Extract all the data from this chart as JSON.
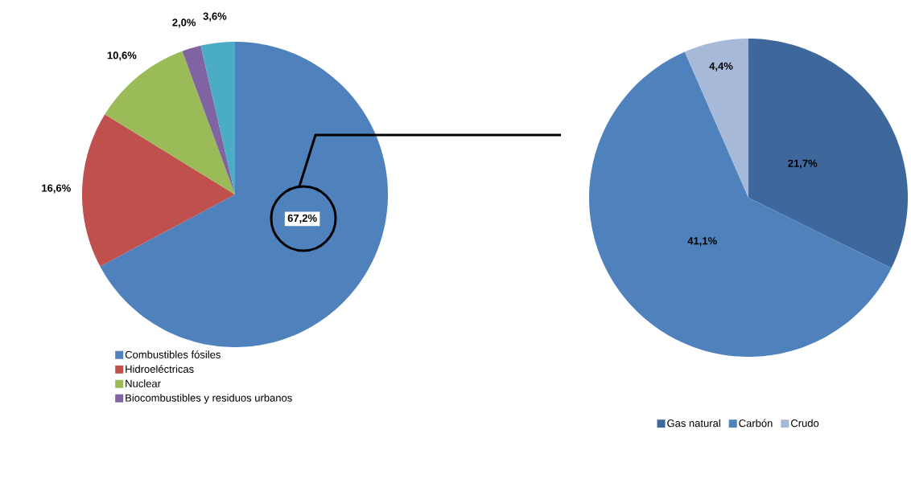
{
  "chart_data": [
    {
      "type": "pie",
      "categories": [
        "Combustibles fósiles",
        "Hidroeléctricas",
        "Nuclear",
        "Biocombustibles y residuos urbanos",
        null
      ],
      "values": [
        67.2,
        16.6,
        10.6,
        2.0,
        3.6
      ],
      "colors": [
        "#4f81bd",
        "#c0504d",
        "#9bbb59",
        "#8064a2",
        "#4bacc6"
      ],
      "value_labels": [
        "67,2%",
        "16,6%",
        "10,6%",
        "2,0%",
        "3,6%"
      ],
      "legend": "bottom"
    },
    {
      "type": "pie",
      "categories": [
        "Gas natural",
        "Carbón",
        "Crudo"
      ],
      "values": [
        21.7,
        41.1,
        4.4
      ],
      "colors": [
        "#3e679c",
        "#4f81bd",
        "#a7b9d9"
      ],
      "value_labels": [
        "21,7%",
        "41,1%",
        "4,4%"
      ],
      "legend": "bottom"
    }
  ]
}
